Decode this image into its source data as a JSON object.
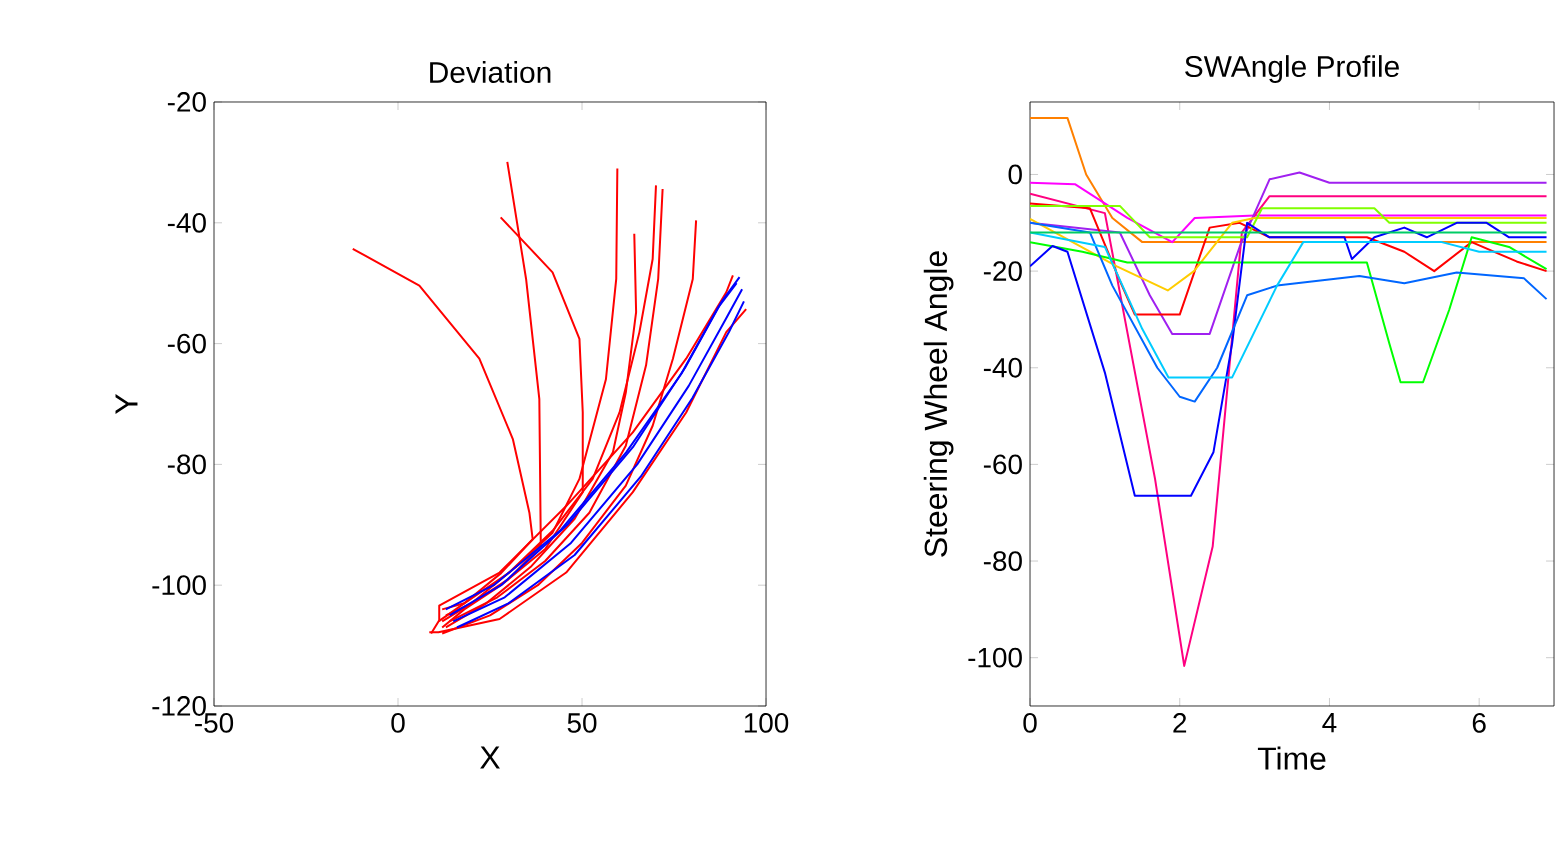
{
  "chart_data": [
    {
      "type": "line",
      "title": "Deviation",
      "xlabel": "X",
      "ylabel": "Y",
      "xlim": [
        -50,
        100
      ],
      "ylim": [
        -120,
        -20
      ],
      "xticks": [
        -50,
        0,
        50,
        100
      ],
      "yticks": [
        -120,
        -100,
        -80,
        -60,
        -40,
        -20
      ],
      "series": [
        {
          "color": "#ff0000",
          "x": [
            -12.3,
            5.8,
            22.1,
            31.2,
            35.7,
            36.6,
            28,
            18,
            11,
            9
          ],
          "values": [
            -44.3,
            -50.4,
            -62.5,
            -75.8,
            -88,
            -92.4,
            -98,
            -103,
            -106,
            -108
          ]
        },
        {
          "color": "#ff0000",
          "x": [
            29.7,
            34.8,
            38.4,
            38.8,
            30,
            20,
            12
          ],
          "values": [
            -29.9,
            -49.3,
            -69.2,
            -93.5,
            -99,
            -103,
            -106
          ]
        },
        {
          "color": "#ff0000",
          "x": [
            27.9,
            42,
            49.3,
            50.2,
            50.2,
            40,
            28,
            18,
            12
          ],
          "values": [
            -39.1,
            -48.2,
            -59.2,
            -71.4,
            -84.6,
            -94,
            -100,
            -104,
            -107
          ]
        },
        {
          "color": "#ff0000",
          "x": [
            59.6,
            59.3,
            56.5,
            49.3,
            42,
            32,
            20,
            13
          ],
          "values": [
            -31,
            -49.3,
            -65.9,
            -82.4,
            -91.3,
            -97,
            -103,
            -105
          ]
        },
        {
          "color": "#ff0000",
          "x": [
            70.1,
            69.2,
            65.6,
            60.2,
            52.9,
            42,
            30,
            18,
            12
          ],
          "values": [
            -33.8,
            -46,
            -58.1,
            -71.4,
            -82.4,
            -91,
            -98,
            -103,
            -104
          ]
        },
        {
          "color": "#ff0000",
          "x": [
            71.9,
            70.7,
            67.4,
            61.9,
            52,
            40,
            27,
            14
          ],
          "values": [
            -34.4,
            -49.3,
            -63.6,
            -76.9,
            -88,
            -96,
            -102,
            -106
          ]
        },
        {
          "color": "#ff0000",
          "x": [
            64.2,
            64.7,
            61.9,
            58.4,
            48,
            36,
            24,
            13
          ],
          "values": [
            -41.8,
            -54.8,
            -68.1,
            -78,
            -89,
            -97,
            -103,
            -107
          ]
        },
        {
          "color": "#ff0000",
          "x": [
            81,
            80.1,
            74.7,
            69.2,
            61.9,
            50,
            38,
            25,
            12
          ],
          "values": [
            -39.6,
            -49.3,
            -62.5,
            -73.6,
            -83.5,
            -93,
            -100,
            -105,
            -108
          ]
        },
        {
          "color": "#ff0000",
          "x": [
            94.6,
            89.2,
            78.3,
            63.8,
            45.7,
            27.6,
            11,
            8.5
          ],
          "values": [
            -54.3,
            -58.1,
            -71.4,
            -84.6,
            -97.9,
            -105.6,
            -107.8,
            -107.8
          ]
        },
        {
          "color": "#ff0000",
          "x": [
            91,
            89.2,
            78.3,
            63.8,
            45.7,
            27.6,
            11.2,
            11.2
          ],
          "values": [
            -48.7,
            -51.5,
            -62.5,
            -74.7,
            -86.9,
            -97.9,
            -103.4,
            -106
          ]
        },
        {
          "color": "#0000ff",
          "x": [
            92.8,
            88,
            78,
            64,
            46,
            28,
            14
          ],
          "values": [
            -49,
            -53,
            -64,
            -77,
            -90,
            -100,
            -105
          ]
        },
        {
          "color": "#0000ff",
          "x": [
            93.5,
            89,
            79,
            65,
            47,
            29,
            15
          ],
          "values": [
            -51,
            -56,
            -67,
            -80,
            -93,
            -102,
            -106
          ]
        },
        {
          "color": "#0000ff",
          "x": [
            92,
            87,
            77,
            62,
            44,
            26,
            13
          ],
          "values": [
            -50,
            -54,
            -65,
            -78,
            -91,
            -100,
            -104
          ]
        },
        {
          "color": "#0000ff",
          "x": [
            94,
            90,
            80,
            66,
            48,
            30,
            16
          ],
          "values": [
            -53,
            -58,
            -69,
            -82,
            -95,
            -103,
            -107
          ]
        }
      ]
    },
    {
      "type": "line",
      "title": "SWAngle Profile",
      "xlabel": "Time",
      "ylabel": "Steering Wheel Angle",
      "xlim": [
        0,
        7
      ],
      "ylim": [
        -110,
        15
      ],
      "xticks": [
        0,
        2,
        4,
        6
      ],
      "yticks": [
        -100,
        -80,
        -60,
        -40,
        -20,
        0
      ],
      "series": [
        {
          "color": "#ff8000",
          "x": [
            0,
            0.5,
            0.75,
            1.1,
            1.5,
            3,
            4.5,
            6.9
          ],
          "values": [
            11.7,
            11.7,
            0,
            -9,
            -14,
            -14,
            -14,
            -14
          ]
        },
        {
          "color": "#ff00ff",
          "x": [
            0,
            0.6,
            1.3,
            1.9,
            2.2,
            3,
            6.9
          ],
          "values": [
            -1.7,
            -2,
            -9,
            -14,
            -9,
            -8.5,
            -8.5
          ]
        },
        {
          "color": "#ff0080",
          "x": [
            0,
            1,
            1.67,
            2.06,
            2.44,
            2.83,
            3.2,
            4.5,
            6.9
          ],
          "values": [
            -4,
            -8,
            -63,
            -101.7,
            -77,
            -12,
            -4.5,
            -4.5,
            -4.5
          ]
        },
        {
          "color": "#a020f0",
          "x": [
            0,
            1.2,
            1.6,
            1.9,
            2.4,
            2.8,
            3.2,
            3.6,
            4,
            6.9
          ],
          "values": [
            -10,
            -12,
            -25,
            -33,
            -33,
            -15,
            -1,
            0.4,
            -1.7,
            -1.7
          ]
        },
        {
          "color": "#ff0000",
          "x": [
            0,
            0.8,
            1.2,
            1.4,
            2,
            2.4,
            2.8,
            3.2,
            4.5,
            5,
            5.4,
            5.9,
            6.5,
            6.9
          ],
          "values": [
            -6,
            -7,
            -22,
            -29,
            -29,
            -11,
            -10,
            -13,
            -13,
            -16,
            -20,
            -14,
            -18,
            -20
          ]
        },
        {
          "color": "#ffcc00",
          "x": [
            0,
            1.16,
            1.84,
            2.19,
            2.7,
            3,
            6.9
          ],
          "values": [
            -9.2,
            -19,
            -24,
            -20,
            -10,
            -9,
            -9
          ]
        },
        {
          "color": "#80ff00",
          "x": [
            0,
            1.2,
            1.6,
            2.9,
            3.1,
            4.6,
            4.8,
            6.9
          ],
          "values": [
            -6.5,
            -6.5,
            -13,
            -13,
            -7,
            -7,
            -10,
            -10
          ]
        },
        {
          "color": "#00ff00",
          "x": [
            0,
            0.7,
            1.3,
            4.5,
            4.8,
            4.95,
            5.25,
            5.6,
            5.9,
            6.4,
            6.9
          ],
          "values": [
            -14,
            -16,
            -18.2,
            -18.2,
            -35,
            -43,
            -43,
            -28,
            -13,
            -15,
            -19.6
          ]
        },
        {
          "color": "#0000ff",
          "x": [
            0,
            0.3,
            0.5,
            1,
            1.4,
            2.15,
            2.45,
            2.7,
            2.9,
            3.2,
            4.2,
            4.3,
            4.6,
            5,
            5.3,
            5.7,
            6.1,
            6.4,
            6.9
          ],
          "values": [
            -19,
            -14.8,
            -16,
            -41,
            -66.5,
            -66.5,
            -57.5,
            -35,
            -10,
            -13,
            -13,
            -17.5,
            -13,
            -11,
            -13,
            -10,
            -10,
            -13,
            -13
          ]
        },
        {
          "color": "#0066ff",
          "x": [
            0,
            0.8,
            1.1,
            1.7,
            2,
            2.2,
            2.5,
            2.9,
            3.3,
            4.4,
            5,
            5.7,
            6.6,
            6.9
          ],
          "values": [
            -10,
            -12,
            -23,
            -40,
            -46,
            -47,
            -40,
            -25,
            -23,
            -21,
            -22.5,
            -20.3,
            -21.5,
            -25.8
          ]
        },
        {
          "color": "#00ccff",
          "x": [
            0,
            1,
            1.5,
            1.85,
            2.7,
            3.3,
            3.65,
            5.5,
            6,
            6.9
          ],
          "values": [
            -12,
            -15,
            -32,
            -42,
            -42,
            -23,
            -14,
            -14,
            -16,
            -16
          ]
        },
        {
          "color": "#00cc66",
          "x": [
            0,
            6.9
          ],
          "values": [
            -12,
            -12
          ]
        }
      ]
    }
  ]
}
